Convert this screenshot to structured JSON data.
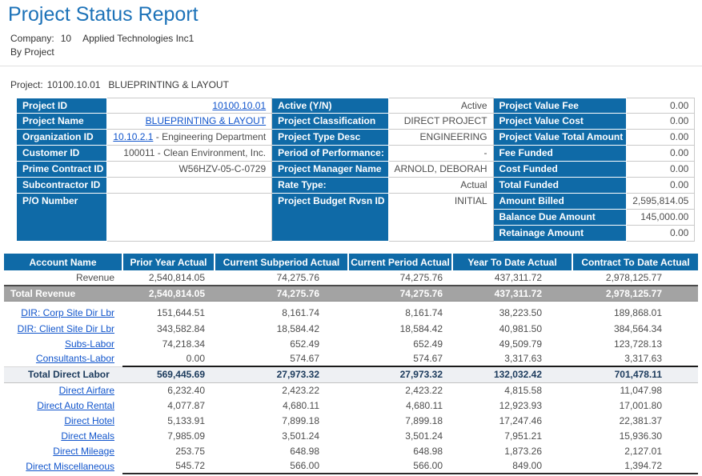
{
  "colors": {
    "accent_blue": "#0f6aa7",
    "title_blue": "#1c72b8",
    "link_blue": "#1155cc",
    "total_row_gray": "#a3a3a3",
    "subtotal_row_bg": "#eef0f3"
  },
  "header": {
    "title": "Project Status Report",
    "company_label": "Company:",
    "company_code": "10",
    "company_name": "Applied Technologies Inc1",
    "grouping": "By Project",
    "project_label": "Project:",
    "project_id": "10100.10.01",
    "project_name": "BLUEPRINTING & LAYOUT"
  },
  "info": {
    "left": [
      {
        "label": "Project ID",
        "value": "10100.10.01",
        "link": true
      },
      {
        "label": "Project Name",
        "value": "BLUEPRINTING & LAYOUT",
        "link": true
      },
      {
        "label": "Organization ID",
        "link_part": "10.10.2.1",
        "text_part": " - Engineering Department"
      },
      {
        "label": "Customer ID",
        "value": "100011 - Clean Environment, Inc."
      },
      {
        "label": "Prime Contract ID",
        "value": "W56HZV-05-C-0729"
      },
      {
        "label": "Subcontractor ID",
        "value": ""
      },
      {
        "label": "P/O Number",
        "value": ""
      }
    ],
    "middle": [
      {
        "label": "Active (Y/N)",
        "value": "Active"
      },
      {
        "label": "Project Classification",
        "value": "DIRECT PROJECT"
      },
      {
        "label": "Project Type Desc",
        "value": "ENGINEERING"
      },
      {
        "label": "Period of Performance:",
        "value": "-"
      },
      {
        "label": "Project Manager Name",
        "value": "ARNOLD, DEBORAH"
      },
      {
        "label": "Rate Type:",
        "value": "Actual"
      },
      {
        "label": "Project Budget Rvsn ID",
        "value": "INITIAL"
      }
    ],
    "right": [
      {
        "label": "Project Value Fee",
        "value": "0.00"
      },
      {
        "label": "Project Value Cost",
        "value": "0.00"
      },
      {
        "label": "Project Value Total Amount",
        "value": "0.00"
      },
      {
        "label": "Fee Funded",
        "value": "0.00"
      },
      {
        "label": "Cost Funded",
        "value": "0.00"
      },
      {
        "label": "Total Funded",
        "value": "0.00"
      },
      {
        "label": "Amount Billed",
        "value": "2,595,814.05"
      },
      {
        "label": "Balance Due Amount",
        "value": "145,000.00"
      },
      {
        "label": "Retainage Amount",
        "value": "0.00"
      }
    ]
  },
  "table": {
    "columns": [
      "Account Name",
      "Prior Year Actual",
      "Current Subperiod Actual",
      "Current Period Actual",
      "Year To Date Actual",
      "Contract To Date Actual"
    ],
    "rows": [
      {
        "name": "Revenue",
        "type": "data",
        "link": false,
        "values": [
          "2,540,814.05",
          "74,275.76",
          "74,275.76",
          "437,311.72",
          "2,978,125.77"
        ]
      },
      {
        "name": "Total Revenue",
        "type": "total-gray",
        "link": false,
        "values": [
          "2,540,814.05",
          "74,275.76",
          "74,275.76",
          "437,311.72",
          "2,978,125.77"
        ]
      },
      {
        "name": "DIR: Corp Site Dir Lbr",
        "type": "data",
        "link": true,
        "values": [
          "151,644.51",
          "8,161.74",
          "8,161.74",
          "38,223.50",
          "189,868.01"
        ]
      },
      {
        "name": "DIR: Client Site Dir Lbr",
        "type": "data",
        "link": true,
        "values": [
          "343,582.84",
          "18,584.42",
          "18,584.42",
          "40,981.50",
          "384,564.34"
        ]
      },
      {
        "name": "Subs-Labor",
        "type": "data",
        "link": true,
        "values": [
          "74,218.34",
          "652.49",
          "652.49",
          "49,509.79",
          "123,728.13"
        ]
      },
      {
        "name": "Consultants-Labor",
        "type": "data",
        "link": true,
        "values": [
          "0.00",
          "574.67",
          "574.67",
          "3,317.63",
          "3,317.63"
        ]
      },
      {
        "name": "Total Direct Labor",
        "type": "total-light",
        "link": false,
        "values": [
          "569,445.69",
          "27,973.32",
          "27,973.32",
          "132,032.42",
          "701,478.11"
        ]
      },
      {
        "name": "Direct Airfare",
        "type": "data",
        "link": true,
        "values": [
          "6,232.40",
          "2,423.22",
          "2,423.22",
          "4,815.58",
          "11,047.98"
        ]
      },
      {
        "name": "Direct Auto Rental",
        "type": "data",
        "link": true,
        "values": [
          "4,077.87",
          "4,680.11",
          "4,680.11",
          "12,923.93",
          "17,001.80"
        ]
      },
      {
        "name": "Direct Hotel",
        "type": "data",
        "link": true,
        "values": [
          "5,133.91",
          "7,899.18",
          "7,899.18",
          "17,247.46",
          "22,381.37"
        ]
      },
      {
        "name": "Direct Meals",
        "type": "data",
        "link": true,
        "values": [
          "7,985.09",
          "3,501.24",
          "3,501.24",
          "7,951.21",
          "15,936.30"
        ]
      },
      {
        "name": "Direct Mileage",
        "type": "data",
        "link": true,
        "values": [
          "253.75",
          "648.98",
          "648.98",
          "1,873.26",
          "2,127.01"
        ]
      },
      {
        "name": "Direct Miscellaneous",
        "type": "data",
        "link": true,
        "values": [
          "545.72",
          "566.00",
          "566.00",
          "849.00",
          "1,394.72"
        ]
      }
    ]
  }
}
